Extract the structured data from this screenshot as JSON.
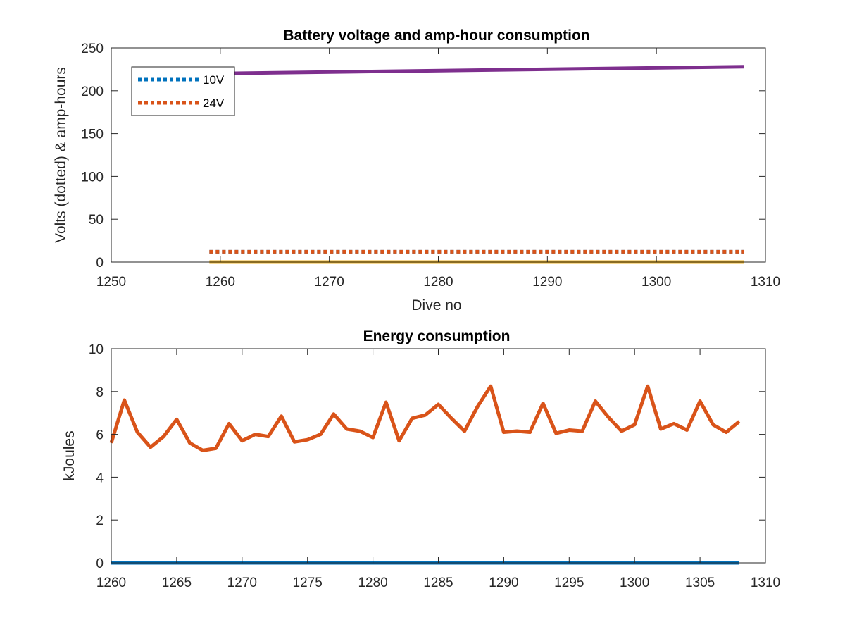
{
  "chart_data": [
    {
      "type": "line",
      "title": "Battery voltage and amp-hour consumption",
      "xlabel": "Dive no",
      "ylabel": "Volts (dotted) & amp-hours",
      "xlim": [
        1250,
        1310
      ],
      "ylim": [
        0,
        250
      ],
      "xticks": [
        1250,
        1260,
        1270,
        1280,
        1290,
        1300,
        1310
      ],
      "yticks": [
        0,
        50,
        100,
        150,
        200,
        250
      ],
      "grid": false,
      "legend": "top-left",
      "legend_entries": [
        "10V",
        "24V"
      ],
      "series": [
        {
          "name": "10V",
          "style": "dotted",
          "color": "#0072BD",
          "x": [
            1259,
            1308
          ],
          "y": [
            12,
            12
          ]
        },
        {
          "name": "24V",
          "style": "dotted",
          "color": "#D95319",
          "x": [
            1259,
            1308
          ],
          "y": [
            12,
            12
          ]
        },
        {
          "style": "solid",
          "color": "#EDB120",
          "x": [
            1259,
            1308
          ],
          "y": [
            0,
            0
          ]
        },
        {
          "style": "solid",
          "color": "#7E2F8E",
          "x": [
            1259,
            1308
          ],
          "y": [
            220,
            228
          ]
        }
      ]
    },
    {
      "type": "line",
      "title": "Energy consumption",
      "xlabel": "",
      "ylabel": "kJoules",
      "xlim": [
        1260,
        1310
      ],
      "ylim": [
        0,
        10
      ],
      "xticks": [
        1260,
        1265,
        1270,
        1275,
        1280,
        1285,
        1290,
        1295,
        1300,
        1305,
        1310
      ],
      "yticks": [
        0,
        2,
        4,
        6,
        8,
        10
      ],
      "grid": false,
      "series": [
        {
          "style": "solid",
          "color": "#0072BD",
          "x": [
            1260,
            1308
          ],
          "y": [
            0,
            0
          ]
        },
        {
          "style": "solid",
          "color": "#D95319",
          "x": [
            1260,
            1261,
            1262,
            1263,
            1264,
            1265,
            1266,
            1267,
            1268,
            1269,
            1270,
            1271,
            1272,
            1273,
            1274,
            1275,
            1276,
            1277,
            1278,
            1279,
            1280,
            1281,
            1282,
            1283,
            1284,
            1285,
            1286,
            1287,
            1288,
            1289,
            1290,
            1291,
            1292,
            1293,
            1294,
            1295,
            1296,
            1297,
            1298,
            1299,
            1300,
            1301,
            1302,
            1303,
            1304,
            1305,
            1306,
            1307,
            1308
          ],
          "y": [
            5.6,
            7.6,
            6.1,
            5.4,
            5.9,
            6.7,
            5.6,
            5.25,
            5.35,
            6.5,
            5.7,
            6.0,
            5.9,
            6.85,
            5.65,
            5.75,
            6.0,
            6.95,
            6.25,
            6.15,
            5.85,
            7.5,
            5.7,
            6.75,
            6.9,
            7.4,
            6.75,
            6.15,
            7.3,
            8.25,
            6.1,
            6.15,
            6.1,
            7.45,
            6.05,
            6.2,
            6.15,
            7.55,
            6.8,
            6.15,
            6.45,
            8.25,
            6.25,
            6.5,
            6.2,
            7.55,
            6.45,
            6.1,
            6.6
          ]
        }
      ]
    }
  ]
}
